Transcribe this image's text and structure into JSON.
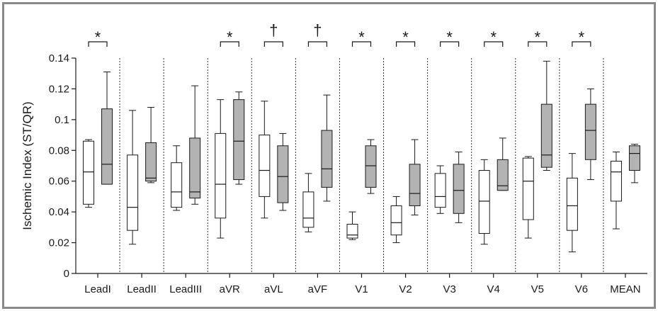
{
  "chart_data": {
    "type": "box",
    "title": "",
    "xlabel": "",
    "ylabel": "Ischemic Index (ST/QR)",
    "ylim": [
      0,
      0.14
    ],
    "yticks": [
      {
        "value": 0,
        "label": "0"
      },
      {
        "value": 0.02,
        "label": "0.02"
      },
      {
        "value": 0.04,
        "label": "0.04"
      },
      {
        "value": 0.06,
        "label": "0.06"
      },
      {
        "value": 0.08,
        "label": "0.08"
      },
      {
        "value": 0.1,
        "label": "0.1"
      },
      {
        "value": 0.12,
        "label": "0.12"
      },
      {
        "value": 0.14,
        "label": "0.14"
      }
    ],
    "grid": false,
    "categories": [
      "LeadI",
      "LeadII",
      "LeadIII",
      "aVR",
      "aVL",
      "aVF",
      "V1",
      "V2",
      "V3",
      "V4",
      "V5",
      "V6",
      "MEAN"
    ],
    "series": [
      {
        "fill": "#ffffff",
        "boxes": [
          {
            "min": 0.043,
            "q1": 0.045,
            "median": 0.066,
            "q3": 0.086,
            "max": 0.087
          },
          {
            "min": 0.019,
            "q1": 0.028,
            "median": 0.043,
            "q3": 0.077,
            "max": 0.106
          },
          {
            "min": 0.041,
            "q1": 0.043,
            "median": 0.053,
            "q3": 0.072,
            "max": 0.083
          },
          {
            "min": 0.023,
            "q1": 0.036,
            "median": 0.058,
            "q3": 0.091,
            "max": 0.113
          },
          {
            "min": 0.036,
            "q1": 0.05,
            "median": 0.067,
            "q3": 0.09,
            "max": 0.112
          },
          {
            "min": 0.027,
            "q1": 0.03,
            "median": 0.036,
            "q3": 0.053,
            "max": 0.065
          },
          {
            "min": 0.022,
            "q1": 0.023,
            "median": 0.025,
            "q3": 0.032,
            "max": 0.04
          },
          {
            "min": 0.02,
            "q1": 0.025,
            "median": 0.033,
            "q3": 0.044,
            "max": 0.05
          },
          {
            "min": 0.039,
            "q1": 0.043,
            "median": 0.05,
            "q3": 0.065,
            "max": 0.07
          },
          {
            "min": 0.019,
            "q1": 0.026,
            "median": 0.047,
            "q3": 0.067,
            "max": 0.074
          },
          {
            "min": 0.023,
            "q1": 0.035,
            "median": 0.06,
            "q3": 0.075,
            "max": 0.076
          },
          {
            "min": 0.014,
            "q1": 0.028,
            "median": 0.044,
            "q3": 0.062,
            "max": 0.078
          },
          {
            "min": 0.029,
            "q1": 0.047,
            "median": 0.066,
            "q3": 0.073,
            "max": 0.079
          }
        ]
      },
      {
        "fill": "#b3b3b3",
        "boxes": [
          {
            "min": 0.058,
            "q1": 0.058,
            "median": 0.071,
            "q3": 0.107,
            "max": 0.131
          },
          {
            "min": 0.059,
            "q1": 0.06,
            "median": 0.062,
            "q3": 0.085,
            "max": 0.108
          },
          {
            "min": 0.045,
            "q1": 0.049,
            "median": 0.053,
            "q3": 0.088,
            "max": 0.122
          },
          {
            "min": 0.058,
            "q1": 0.061,
            "median": 0.086,
            "q3": 0.113,
            "max": 0.118
          },
          {
            "min": 0.041,
            "q1": 0.046,
            "median": 0.063,
            "q3": 0.083,
            "max": 0.091
          },
          {
            "min": 0.047,
            "q1": 0.056,
            "median": 0.068,
            "q3": 0.093,
            "max": 0.116
          },
          {
            "min": 0.052,
            "q1": 0.056,
            "median": 0.07,
            "q3": 0.083,
            "max": 0.087
          },
          {
            "min": 0.038,
            "q1": 0.044,
            "median": 0.052,
            "q3": 0.071,
            "max": 0.087
          },
          {
            "min": 0.033,
            "q1": 0.039,
            "median": 0.054,
            "q3": 0.071,
            "max": 0.079
          },
          {
            "min": 0.054,
            "q1": 0.054,
            "median": 0.057,
            "q3": 0.074,
            "max": 0.088
          },
          {
            "min": 0.067,
            "q1": 0.069,
            "median": 0.077,
            "q3": 0.11,
            "max": 0.138
          },
          {
            "min": 0.061,
            "q1": 0.074,
            "median": 0.093,
            "q3": 0.11,
            "max": 0.12
          },
          {
            "min": 0.059,
            "q1": 0.067,
            "median": 0.078,
            "q3": 0.083,
            "max": 0.084
          }
        ]
      }
    ],
    "significance": [
      "*",
      "",
      "",
      "*",
      "†",
      "†",
      "*",
      "*",
      "*",
      "*",
      "*",
      "*",
      ""
    ]
  }
}
